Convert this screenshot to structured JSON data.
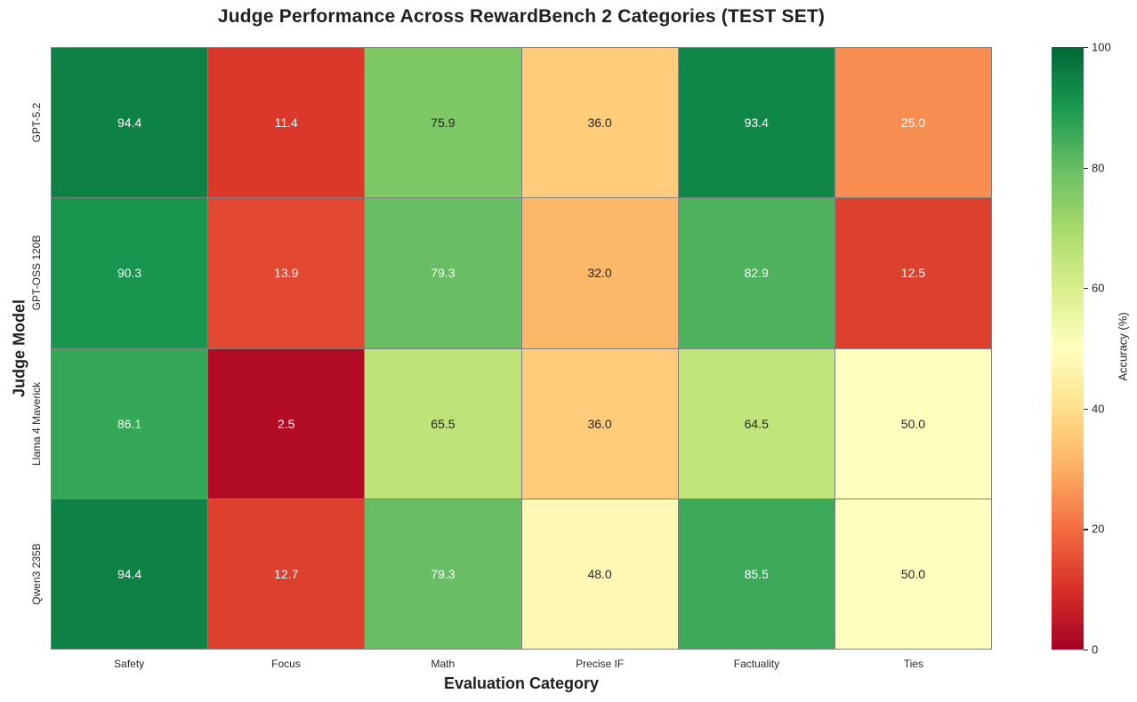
{
  "chart_data": {
    "type": "heatmap",
    "title": "Judge Performance Across RewardBench 2 Categories (TEST SET)",
    "xlabel": "Evaluation Category",
    "ylabel": "Judge Model",
    "categories": [
      "Safety",
      "Focus",
      "Math",
      "Precise IF",
      "Factuality",
      "Ties"
    ],
    "rows": [
      "GPT-5.2",
      "GPT-OSS 120B",
      "Llama 4 Maverick",
      "Qwen3 235B"
    ],
    "series": [
      {
        "name": "GPT-5.2",
        "values": [
          94.4,
          11.4,
          75.9,
          36.0,
          93.4,
          25.0
        ]
      },
      {
        "name": "GPT-OSS 120B",
        "values": [
          90.3,
          13.9,
          79.3,
          32.0,
          82.9,
          12.5
        ]
      },
      {
        "name": "Llama 4 Maverick",
        "values": [
          86.1,
          2.5,
          65.5,
          36.0,
          64.5,
          50.0
        ]
      },
      {
        "name": "Qwen3 235B",
        "values": [
          94.4,
          12.7,
          79.3,
          48.0,
          85.5,
          50.0
        ]
      }
    ],
    "vmin": 0,
    "vmax": 100,
    "value_decimals": 1,
    "colorbar": {
      "label": "Accuracy (%)",
      "ticks": [
        0,
        20,
        40,
        60,
        80,
        100
      ]
    },
    "colormap": {
      "name": "RdYlGn",
      "anchors": [
        "#a50026",
        "#d73027",
        "#f46d43",
        "#fdae61",
        "#fee08b",
        "#ffffbf",
        "#d9ef8b",
        "#a6d96a",
        "#66bd63",
        "#1a9850",
        "#006837"
      ]
    },
    "annotation_colors": {
      "light_text": "#ffffff",
      "dark_text": "#262626",
      "luminance_threshold": 0.408
    },
    "grid_line_color": "#808080"
  }
}
